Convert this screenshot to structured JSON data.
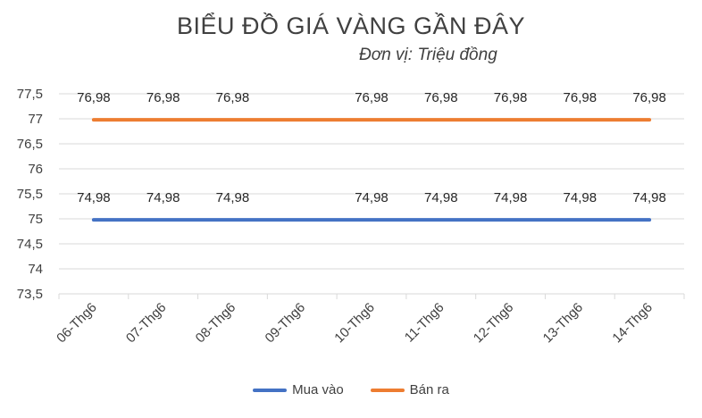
{
  "chart_data": {
    "type": "line",
    "title": "BIỂU ĐỒ GIÁ VÀNG GẦN ĐÂY",
    "subtitle": "Đơn vị: Triệu đồng",
    "categories": [
      "06-Thg6",
      "07-Thg6",
      "08-Thg6",
      "09-Thg6",
      "10-Thg6",
      "11-Thg6",
      "12-Thg6",
      "13-Thg6",
      "14-Thg6"
    ],
    "ylim": [
      73.5,
      77.5
    ],
    "yticks": [
      73.5,
      74,
      74.5,
      75,
      75.5,
      76,
      76.5,
      77,
      77.5
    ],
    "ytick_labels": [
      "73,5",
      "74",
      "74,5",
      "75",
      "75,5",
      "76",
      "76,5",
      "77",
      "77,5"
    ],
    "grid": true,
    "legend_position": "bottom",
    "series": [
      {
        "name": "Mua vào",
        "color": "#4472c4",
        "values": [
          74.98,
          74.98,
          74.98,
          74.98,
          74.98,
          74.98,
          74.98,
          74.98,
          74.98
        ],
        "labels": [
          "74,98",
          "74,98",
          "74,98",
          "",
          "74,98",
          "74,98",
          "74,98",
          "74,98",
          "74,98"
        ]
      },
      {
        "name": "Bán ra",
        "color": "#ed7d31",
        "values": [
          76.98,
          76.98,
          76.98,
          76.98,
          76.98,
          76.98,
          76.98,
          76.98,
          76.98
        ],
        "labels": [
          "76,98",
          "76,98",
          "76,98",
          "",
          "76,98",
          "76,98",
          "76,98",
          "76,98",
          "76,98"
        ]
      }
    ]
  }
}
